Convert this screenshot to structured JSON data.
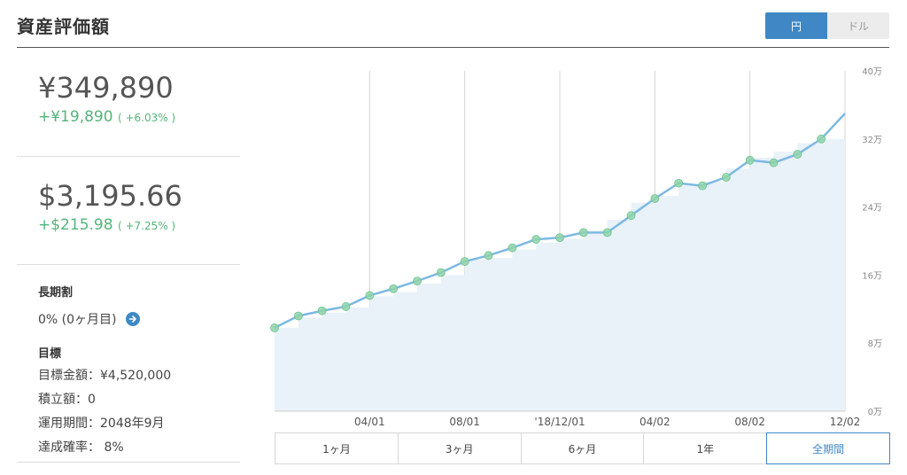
{
  "header": {
    "title": "資産評価額"
  },
  "currency_toggle": {
    "options": [
      "円",
      "ドル"
    ],
    "selected": "円"
  },
  "yen": {
    "value": "¥349,890",
    "gain": "+¥19,890",
    "pct": "( +6.03% )"
  },
  "usd": {
    "value": "$3,195.66",
    "gain": "+$215.98",
    "pct": "( +7.25% )"
  },
  "long_term": {
    "heading": "長期割",
    "value": "0% (0ヶ月目)"
  },
  "goal": {
    "heading": "目標",
    "amount": "目標金額：¥4,520,000",
    "deposit": "積立額：0",
    "period": "運用期間：2048年9月",
    "probability": "達成確率： 8%"
  },
  "periods": [
    "1ヶ月",
    "3ヶ月",
    "6ヶ月",
    "1年",
    "全期間"
  ],
  "selected_period": "全期間",
  "colors": {
    "accent": "#3f88c5",
    "gain": "#55b47a",
    "line": "#7db9e3",
    "area": "#e9f1f9",
    "marker": "#8fd3a8"
  },
  "chart_data": {
    "type": "area",
    "x_tick_labels": [
      "04/01",
      "08/01",
      "'18/12/01",
      "04/02",
      "08/02",
      "12/02"
    ],
    "y_tick_labels": [
      "0万",
      "8万",
      "16万",
      "24万",
      "32万",
      "40万"
    ],
    "ylim": [
      0,
      40
    ],
    "y_unit": "万",
    "grid": true,
    "x": [
      0,
      0.5,
      1,
      1.5,
      2,
      2.5,
      3,
      3.5,
      4,
      4.5,
      5,
      5.5,
      6,
      6.5,
      7,
      7.5,
      8,
      8.5,
      9,
      9.5,
      10,
      10.5,
      11,
      11.5,
      12
    ],
    "series": [
      {
        "values": [
          9.8,
          11.2,
          11.8,
          12.3,
          13.6,
          14.4,
          15.3,
          16.3,
          17.6,
          18.3,
          19.2,
          20.2,
          20.4,
          21.0,
          21.0,
          23.0,
          25.0,
          26.8,
          26.5,
          27.5,
          29.5,
          29.2,
          30.2,
          32.0,
          35.0
        ]
      },
      {
        "values": [
          9.8,
          11.0,
          11.6,
          12.2,
          13.5,
          14.0,
          15.0,
          16.0,
          17.8,
          18.0,
          19.0,
          19.8,
          20.3,
          21.0,
          22.5,
          24.5,
          25.3,
          26.5,
          27.0,
          28.5,
          29.8,
          30.5,
          31.5,
          32.0,
          33.0
        ]
      }
    ]
  }
}
